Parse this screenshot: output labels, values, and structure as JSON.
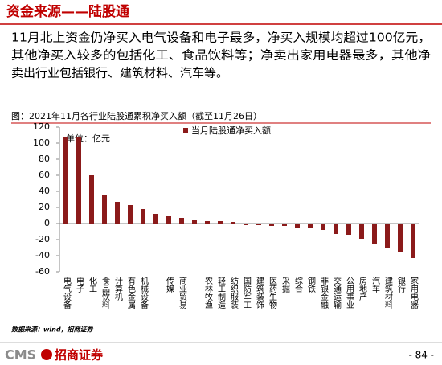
{
  "header": {
    "title": "资金来源——陆股通"
  },
  "body": {
    "lines": [
      "11月北上资金仍净买入电气设备和电子最多，净买入规模均超过100亿元，",
      "其他净买入较多的包括化工、食品饮料等；净卖出家用电器最多，其他净",
      "卖出行业包括银行、建筑材料、汽车等。"
    ]
  },
  "chart_data": {
    "type": "bar",
    "title": "图：2021年11月各行业陆股通累积净买入额（截至11月26日）",
    "unit_label": "单位：亿元",
    "source": "数据来源：wind，招商证券",
    "categories": [
      "电气设备",
      "电子",
      "化工",
      "食品饮料",
      "计算机",
      "有色金属",
      "机械设备",
      null,
      "传媒",
      "商业贸易",
      null,
      "农林牧渔",
      "轻工制造",
      "纺织服装",
      "国防军工",
      "建筑装饰",
      "医药生物",
      "采掘",
      "综合",
      "钢铁",
      "非银金融",
      "交通运输",
      "公用事业",
      "房地产",
      "汽车",
      "建筑材料",
      "银行",
      "家用电器"
    ],
    "series": [
      {
        "name": "当月陆股通净买入额",
        "color": "#8b1a1a",
        "values": [
          107,
          107,
          60,
          35,
          27,
          23,
          18,
          12,
          9,
          7,
          4,
          3,
          3,
          2,
          -2,
          -2,
          -3,
          -3,
          -5,
          -6,
          -8,
          -13,
          -14,
          -19,
          -26,
          -30,
          -35,
          -43
        ]
      }
    ],
    "ylim": [
      -60,
      120
    ],
    "yticks": [
      120,
      100,
      80,
      60,
      40,
      20,
      0,
      -20,
      -40,
      -60
    ],
    "grid": false
  },
  "footer": {
    "logo": "CMS",
    "company": "招商证券",
    "page": "- 84 -"
  }
}
